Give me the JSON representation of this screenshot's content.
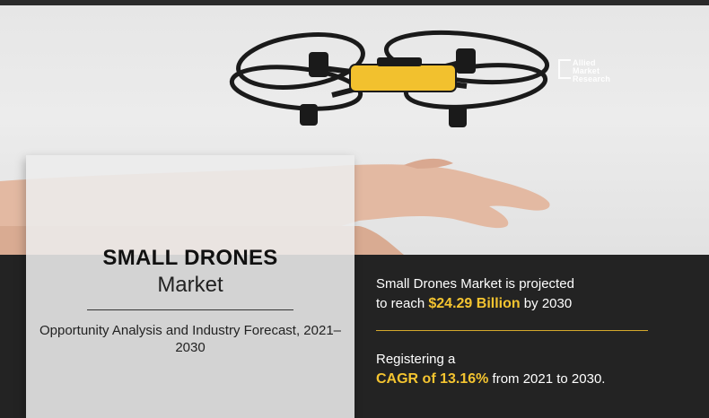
{
  "logo": {
    "text": "Allied\nMarket\nResearch"
  },
  "title_card": {
    "title": "SMALL DRONES",
    "subtitle": "Market",
    "description": "Opportunity Analysis and Industry Forecast, 2021–2030"
  },
  "stats": {
    "line1": "Small Drones Market is projected",
    "line2_prefix": "to reach ",
    "line2_value": "$24.29 Billion",
    "line2_suffix": " by 2030",
    "line3": "Registering a",
    "line4_value": "CAGR of 13.16%",
    "line4_suffix": " from 2021 to 2030."
  },
  "colors": {
    "accent": "#f4c430",
    "dark_band": "#232323",
    "drone_body": "#f2c12e",
    "drone_frame": "#1a1a1a"
  }
}
